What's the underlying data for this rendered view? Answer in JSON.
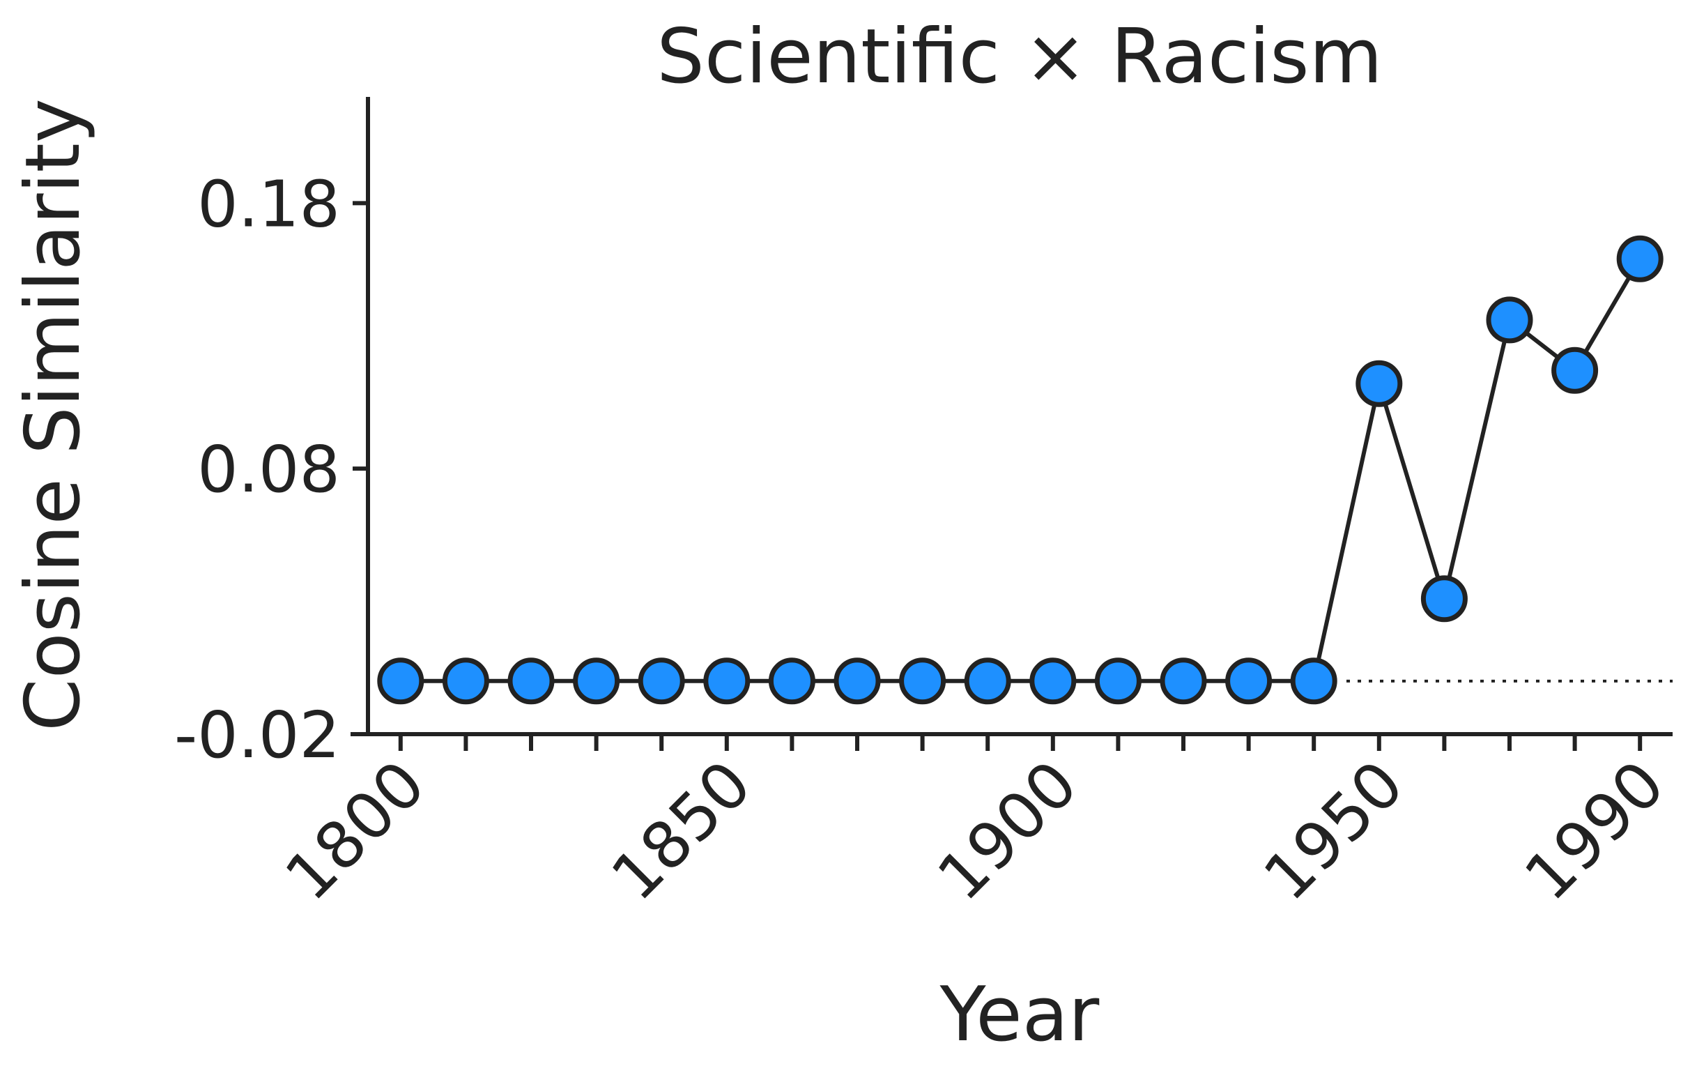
{
  "chart_data": {
    "type": "line",
    "title": "Scientific × Racism",
    "xlabel": "Year",
    "ylabel": "Cosine Similarity",
    "x": [
      1800,
      1810,
      1820,
      1830,
      1840,
      1850,
      1860,
      1870,
      1880,
      1890,
      1900,
      1910,
      1920,
      1930,
      1940,
      1950,
      1960,
      1970,
      1980,
      1990
    ],
    "y": [
      0.0,
      0.0,
      0.0,
      0.0,
      0.0,
      0.0,
      0.0,
      0.0,
      0.0,
      0.0,
      0.0,
      0.0,
      0.0,
      0.0,
      0.0,
      0.112,
      0.031,
      0.136,
      0.117,
      0.159
    ],
    "xticks": [
      "1800",
      "1850",
      "1900",
      "1950",
      "1990"
    ],
    "xtick_values": [
      1800,
      1850,
      1900,
      1950,
      1990
    ],
    "yticks": [
      "-0.02",
      "0.08",
      "0.18"
    ],
    "ytick_values": [
      -0.02,
      0.08,
      0.18
    ],
    "xlim": [
      1795,
      1995
    ],
    "ylim": [
      -0.02,
      0.22
    ],
    "baseline": {
      "y": 0.0,
      "from_x": 1945,
      "to_x": 1995,
      "style": "dotted"
    },
    "grid": false,
    "legend": "none",
    "colors": {
      "marker_fill": "#1E90FF",
      "marker_edge": "#222222",
      "line": "#222222"
    }
  }
}
